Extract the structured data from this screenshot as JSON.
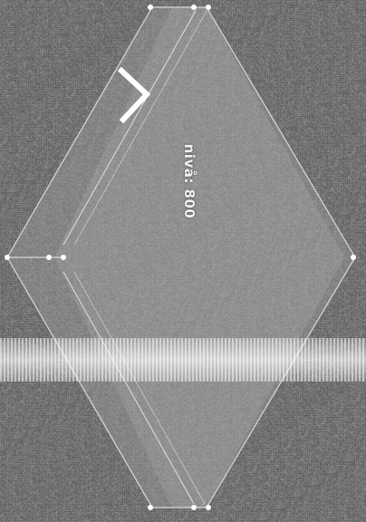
{
  "screen": {
    "brightness_label": "nivå: 800",
    "back_icon": "chevron-left-icon",
    "colors": {
      "background": "#707070",
      "panel": "#9a9a9a",
      "outline": "#d8d8d8",
      "handle": "#ffffff",
      "label": "#f2f2f2"
    }
  }
}
